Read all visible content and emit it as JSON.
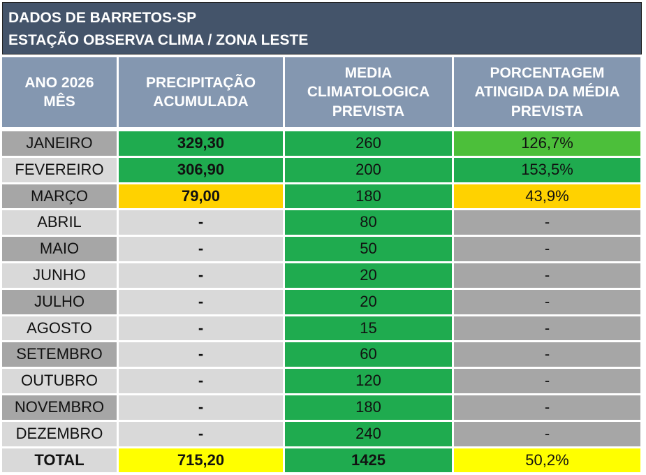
{
  "title": {
    "lines": [
      "DADOS DE BARRETOS-SP",
      "ESTAÇÃO OBSERVA CLIMA / ZONA LESTE"
    ]
  },
  "table": {
    "header": [
      [
        "ANO 2026",
        "MÊS"
      ],
      [
        "PRECIPITAÇÃO",
        "ACUMULADA"
      ],
      [
        "MEDIA",
        "CLIMATOLOGICA",
        "PREVISTA"
      ],
      [
        "PORCENTAGEM",
        "ATINGIDA DA MÉDIA",
        "PREVISTA"
      ]
    ],
    "rows": [
      [
        "JANEIRO",
        "329,30",
        "260",
        "126,7%"
      ],
      [
        "FEVEREIRO",
        "306,90",
        "200",
        "153,5%"
      ],
      [
        "MARÇO",
        "79,00",
        "180",
        "43,9%"
      ],
      [
        "ABRIL",
        "-",
        "80",
        "-"
      ],
      [
        "MAIO",
        "-",
        "50",
        "-"
      ],
      [
        "JUNHO",
        "-",
        "20",
        "-"
      ],
      [
        "JULHO",
        "-",
        "20",
        "-"
      ],
      [
        "AGOSTO",
        "-",
        "15",
        "-"
      ],
      [
        "SETEMBRO",
        "-",
        "60",
        "-"
      ],
      [
        "OUTUBRO",
        "-",
        "120",
        "-"
      ],
      [
        "NOVEMBRO",
        "-",
        "180",
        "-"
      ],
      [
        "DEZEMBRO",
        "-",
        "240",
        "-"
      ]
    ],
    "total": [
      "TOTAL",
      "715,20",
      "1425",
      "50,2%"
    ]
  }
}
